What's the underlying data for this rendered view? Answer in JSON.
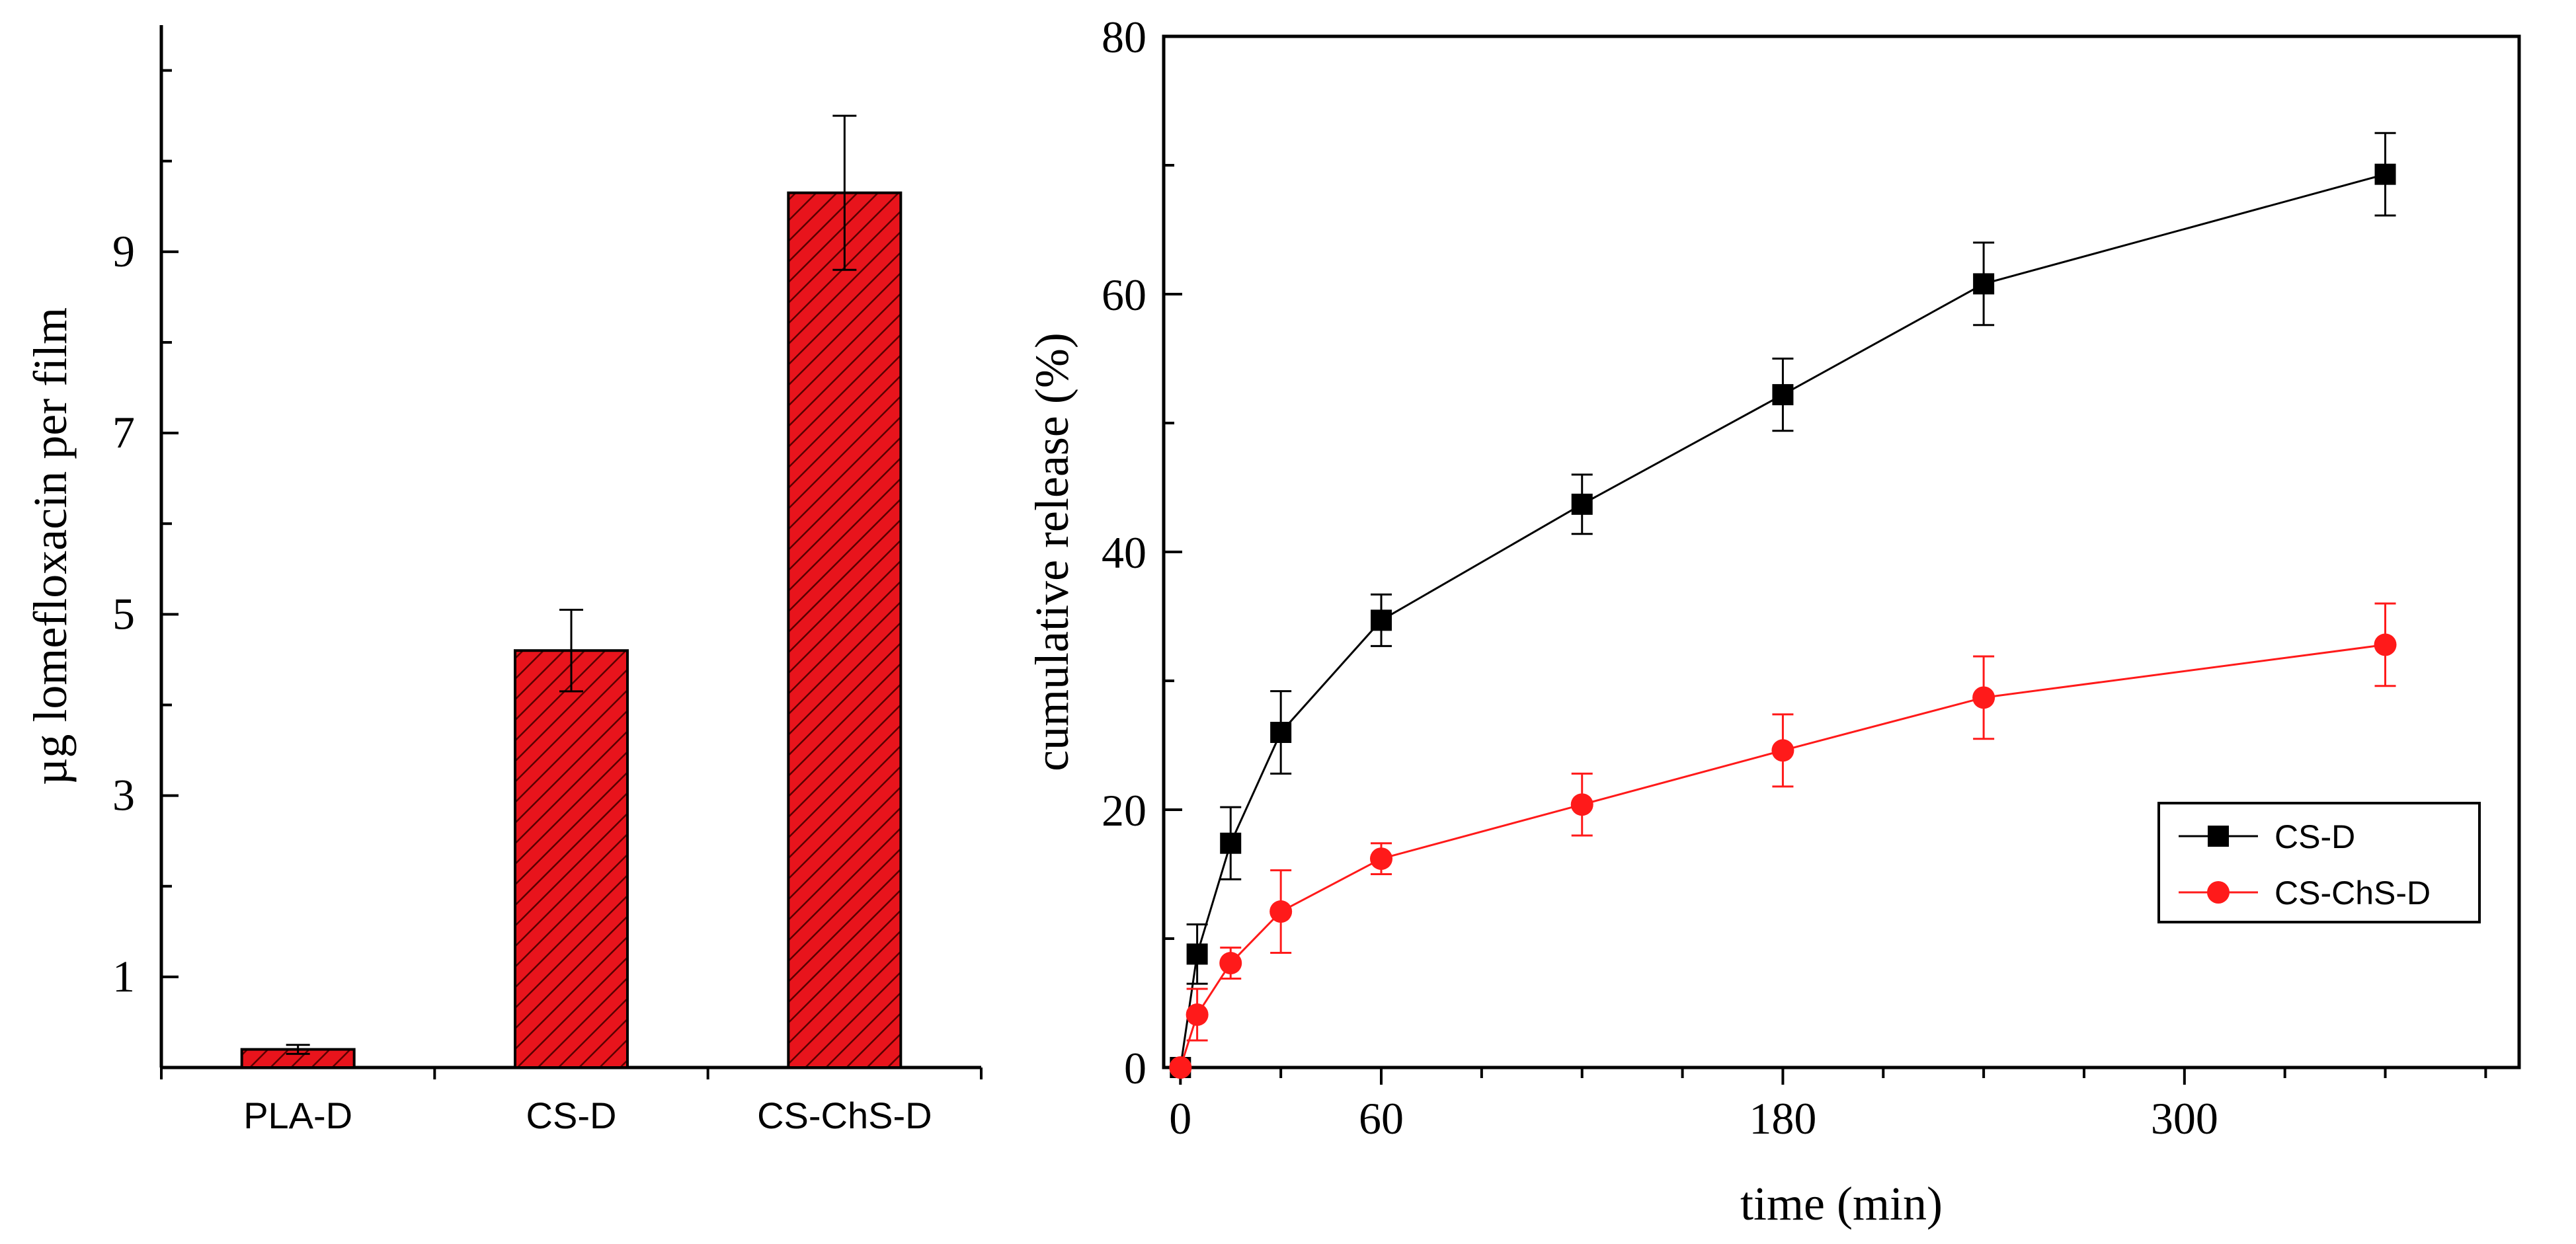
{
  "chart_data": [
    {
      "type": "bar",
      "categories": [
        "PLA-D",
        "CS-D",
        "CS-ChS-D"
      ],
      "values": [
        0.2,
        4.6,
        9.65
      ],
      "errors": [
        0.05,
        0.45,
        0.85
      ],
      "ylabel": "µg lomefloxacin per film",
      "xlabel": "",
      "title": "",
      "ylim": [
        0,
        11.5
      ],
      "yticks": [
        1,
        3,
        5,
        7,
        9
      ],
      "bar_color": "#e8141c",
      "hatch": "diagonal"
    },
    {
      "type": "line",
      "xlabel": "time (min)",
      "ylabel": "cumulative release (%)",
      "title": "",
      "xlim": [
        -5,
        400
      ],
      "ylim": [
        0,
        80
      ],
      "xticks": [
        0,
        60,
        180,
        300
      ],
      "yticks": [
        0,
        20,
        40,
        60,
        80
      ],
      "legend_position": "right",
      "series": [
        {
          "name": "CS-D",
          "color": "#000000",
          "marker": "square",
          "x": [
            0,
            5,
            15,
            30,
            60,
            120,
            180,
            240,
            360
          ],
          "y": [
            0,
            8.8,
            17.4,
            26.0,
            34.7,
            43.7,
            52.2,
            60.8,
            69.3
          ],
          "err": [
            0,
            2.3,
            2.8,
            3.2,
            2.0,
            2.3,
            2.8,
            3.2,
            3.2
          ]
        },
        {
          "name": "CS-ChS-D",
          "color": "#ff1a1a",
          "marker": "circle",
          "x": [
            0,
            5,
            15,
            30,
            60,
            120,
            180,
            240,
            360
          ],
          "y": [
            0,
            4.1,
            8.1,
            12.1,
            16.2,
            20.4,
            24.6,
            28.7,
            32.8
          ],
          "err": [
            0,
            2.0,
            1.2,
            3.2,
            1.2,
            2.4,
            2.8,
            3.2,
            3.2
          ]
        }
      ]
    }
  ]
}
